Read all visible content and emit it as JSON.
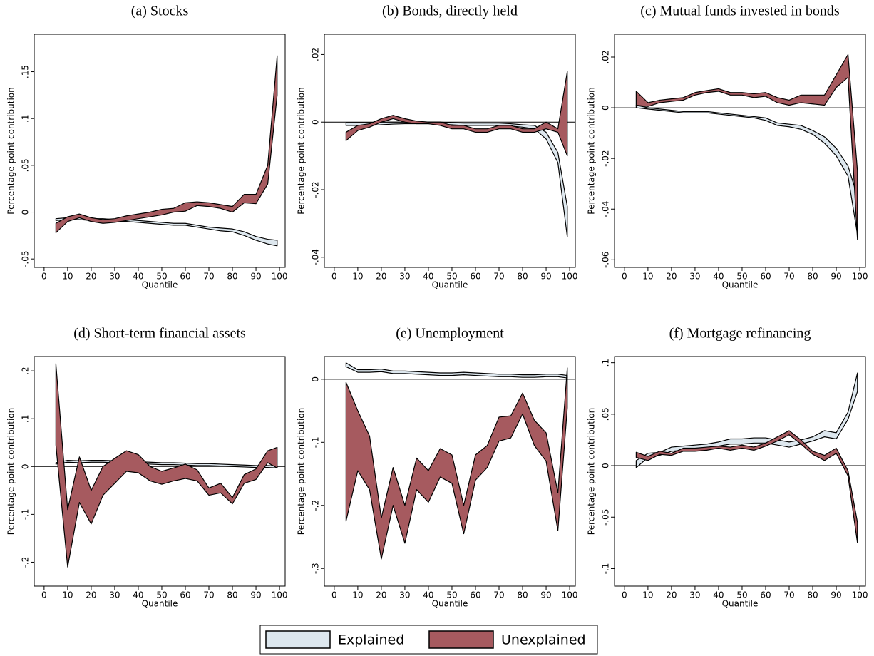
{
  "chart_data": [
    {
      "type": "band",
      "title": "(a) Stocks",
      "xlabel": "Quantile",
      "ylabel": "Percentage point contribution",
      "x": [
        5,
        10,
        15,
        20,
        25,
        30,
        35,
        40,
        45,
        50,
        55,
        60,
        65,
        70,
        75,
        80,
        85,
        90,
        95,
        99
      ],
      "xlim": [
        -4.2,
        102.4
      ],
      "xticks": [
        0,
        10,
        20,
        30,
        40,
        50,
        60,
        70,
        80,
        90,
        100
      ],
      "ylim": [
        -0.059,
        0.19
      ],
      "yticks": [
        {
          "value": -0.05,
          "label": "-.05"
        },
        0,
        {
          "value": 0.05,
          "label": ".05"
        },
        {
          "value": 0.1,
          "label": ".1"
        },
        {
          "value": 0.15,
          "label": ".15"
        }
      ],
      "zero_line": true,
      "series": [
        {
          "name": "Explained",
          "color": "#dde7ee",
          "low": [
            -0.009,
            -0.008,
            -0.008,
            -0.009,
            -0.009,
            -0.01,
            -0.01,
            -0.011,
            -0.012,
            -0.013,
            -0.014,
            -0.014,
            -0.016,
            -0.018,
            -0.02,
            -0.021,
            -0.025,
            -0.03,
            -0.034,
            -0.036
          ],
          "high": [
            -0.007,
            -0.006,
            -0.006,
            -0.007,
            -0.007,
            -0.008,
            -0.008,
            -0.009,
            -0.01,
            -0.011,
            -0.012,
            -0.012,
            -0.014,
            -0.016,
            -0.017,
            -0.018,
            -0.021,
            -0.026,
            -0.029,
            -0.03
          ]
        },
        {
          "name": "Unexplained",
          "color": "#a65a5f",
          "low": [
            -0.022,
            -0.01,
            -0.006,
            -0.01,
            -0.012,
            -0.011,
            -0.009,
            -0.007,
            -0.005,
            -0.003,
            0.0,
            0.001,
            0.007,
            0.006,
            0.004,
            0.0,
            0.01,
            0.009,
            0.03,
            0.125
          ],
          "high": [
            -0.012,
            -0.005,
            -0.002,
            -0.006,
            -0.008,
            -0.007,
            -0.004,
            -0.002,
            0.0,
            0.003,
            0.004,
            0.01,
            0.011,
            0.01,
            0.008,
            0.006,
            0.019,
            0.019,
            0.05,
            0.167
          ]
        }
      ]
    },
    {
      "type": "band",
      "title": "(b) Bonds, directly held",
      "xlabel": "Quantile",
      "ylabel": "Percentage point contribution",
      "x": [
        5,
        10,
        15,
        20,
        25,
        30,
        35,
        40,
        45,
        50,
        55,
        60,
        65,
        70,
        75,
        80,
        85,
        90,
        95,
        99
      ],
      "xlim": [
        -4.2,
        102.4
      ],
      "xticks": [
        0,
        10,
        20,
        30,
        40,
        50,
        60,
        70,
        80,
        90,
        100
      ],
      "ylim": [
        -0.043,
        0.026
      ],
      "yticks": [
        {
          "value": -0.04,
          "label": "-.04"
        },
        {
          "value": -0.02,
          "label": "-.02"
        },
        0,
        {
          "value": 0.02,
          "label": ".02"
        }
      ],
      "zero_line": true,
      "series": [
        {
          "color": "#dde7ee",
          "low": [
            -0.001,
            -0.001,
            -0.001,
            -0.0008,
            -0.0006,
            -0.0005,
            -0.0005,
            -0.0005,
            -0.0006,
            -0.0008,
            -0.001,
            -0.001,
            -0.001,
            -0.001,
            -0.0012,
            -0.0015,
            -0.002,
            -0.005,
            -0.012,
            -0.034
          ],
          "high": [
            -0.0002,
            -0.0002,
            -0.0002,
            0,
            0,
            0,
            0,
            0,
            0,
            -0.0002,
            -0.0003,
            -0.0003,
            -0.0003,
            -0.0003,
            -0.0005,
            -0.0008,
            -0.001,
            -0.003,
            -0.009,
            -0.025
          ]
        },
        {
          "color": "#a65a5f",
          "low": [
            -0.0055,
            -0.0025,
            -0.0015,
            0,
            0.001,
            0,
            -0.0005,
            -0.0005,
            -0.001,
            -0.002,
            -0.002,
            -0.003,
            -0.003,
            -0.002,
            -0.002,
            -0.003,
            -0.003,
            -0.002,
            -0.003,
            -0.01
          ],
          "high": [
            -0.003,
            -0.001,
            -0.0005,
            0.001,
            0.002,
            0.001,
            0.0003,
            0,
            0,
            -0.001,
            -0.001,
            -0.002,
            -0.002,
            -0.001,
            -0.001,
            -0.002,
            -0.002,
            0,
            -0.002,
            0.015
          ]
        }
      ]
    },
    {
      "type": "band",
      "title": "(c) Mutual funds invested in bonds",
      "xlabel": "Quantile",
      "ylabel": "Percentage point contribution",
      "x": [
        5,
        10,
        15,
        20,
        25,
        30,
        35,
        40,
        45,
        50,
        55,
        60,
        65,
        70,
        75,
        80,
        85,
        90,
        95,
        99
      ],
      "xlim": [
        -4.2,
        102.4
      ],
      "xticks": [
        0,
        10,
        20,
        30,
        40,
        50,
        60,
        70,
        80,
        90,
        100
      ],
      "ylim": [
        -0.063,
        0.029
      ],
      "yticks": [
        {
          "value": -0.06,
          "label": "-.06"
        },
        {
          "value": -0.04,
          "label": "-.04"
        },
        {
          "value": -0.02,
          "label": "-.02"
        },
        0,
        {
          "value": 0.02,
          "label": ".02"
        }
      ],
      "zero_line": true,
      "series": [
        {
          "color": "#dde7ee",
          "low": [
            0,
            -0.0005,
            -0.001,
            -0.0015,
            -0.002,
            -0.002,
            -0.002,
            -0.0025,
            -0.003,
            -0.0035,
            -0.004,
            -0.005,
            -0.007,
            -0.0075,
            -0.0085,
            -0.0105,
            -0.014,
            -0.019,
            -0.027,
            -0.05
          ],
          "high": [
            0.001,
            0,
            -0.0005,
            -0.001,
            -0.0015,
            -0.0015,
            -0.0015,
            -0.002,
            -0.0025,
            -0.003,
            -0.0035,
            -0.004,
            -0.006,
            -0.0065,
            -0.007,
            -0.009,
            -0.0115,
            -0.016,
            -0.023,
            -0.035
          ]
        },
        {
          "color": "#a65a5f",
          "low": [
            0.001,
            0.0005,
            0.002,
            0.0025,
            0.003,
            0.005,
            0.006,
            0.0065,
            0.005,
            0.005,
            0.004,
            0.0045,
            0.002,
            0.001,
            0.002,
            0.0015,
            0.001,
            0.008,
            0.012,
            -0.052
          ],
          "high": [
            0.0065,
            0.002,
            0.003,
            0.0035,
            0.004,
            0.006,
            0.0068,
            0.0075,
            0.006,
            0.006,
            0.0055,
            0.006,
            0.004,
            0.003,
            0.005,
            0.005,
            0.005,
            0.013,
            0.021,
            -0.025
          ]
        }
      ]
    },
    {
      "type": "band",
      "title": "(d) Short-term financial assets",
      "xlabel": "Quantile",
      "ylabel": "Percentage point contribution",
      "x": [
        5,
        10,
        15,
        20,
        25,
        30,
        35,
        40,
        45,
        50,
        55,
        60,
        65,
        70,
        75,
        80,
        85,
        90,
        95,
        99
      ],
      "xlim": [
        -4.2,
        102.4
      ],
      "xticks": [
        0,
        10,
        20,
        30,
        40,
        50,
        60,
        70,
        80,
        90,
        100
      ],
      "ylim": [
        -0.25,
        0.23
      ],
      "yticks": [
        {
          "value": -0.2,
          "label": "-.2"
        },
        {
          "value": -0.1,
          "label": "-.1"
        },
        0,
        {
          "value": 0.1,
          "label": ".1"
        },
        {
          "value": 0.2,
          "label": ".2"
        }
      ],
      "zero_line": true,
      "series": [
        {
          "color": "#dde7ee",
          "low": [
            0.005,
            0.009,
            0.008,
            0.009,
            0.009,
            0.008,
            0.007,
            0.006,
            0.005,
            0.004,
            0.004,
            0.003,
            0.002,
            0.002,
            0.001,
            0,
            -0.001,
            -0.002,
            -0.002,
            -0.003
          ],
          "high": [
            0.008,
            0.013,
            0.012,
            0.013,
            0.013,
            0.012,
            0.011,
            0.01,
            0.009,
            0.008,
            0.008,
            0.007,
            0.006,
            0.006,
            0.005,
            0.004,
            0.003,
            0.002,
            0.002,
            0.001
          ]
        },
        {
          "color": "#a65a5f",
          "low": [
            0.045,
            -0.21,
            -0.075,
            -0.12,
            -0.06,
            -0.035,
            -0.01,
            -0.013,
            -0.03,
            -0.037,
            -0.03,
            -0.025,
            -0.03,
            -0.06,
            -0.055,
            -0.078,
            -0.035,
            -0.027,
            0.008,
            -0.003
          ],
          "high": [
            0.215,
            -0.09,
            0.02,
            -0.05,
            0,
            0.017,
            0.033,
            0.025,
            0,
            -0.01,
            -0.003,
            0.005,
            -0.007,
            -0.045,
            -0.035,
            -0.065,
            -0.017,
            -0.005,
            0.033,
            0.04
          ]
        }
      ]
    },
    {
      "type": "band",
      "title": "(e) Unemployment",
      "xlabel": "Quantile",
      "ylabel": "Percentage point contribution",
      "x": [
        5,
        10,
        15,
        20,
        25,
        30,
        35,
        40,
        45,
        50,
        55,
        60,
        65,
        70,
        75,
        80,
        85,
        90,
        95,
        99
      ],
      "xlim": [
        -4.2,
        102.4
      ],
      "xticks": [
        0,
        10,
        20,
        30,
        40,
        50,
        60,
        70,
        80,
        90,
        100
      ],
      "ylim": [
        -0.328,
        0.036
      ],
      "yticks": [
        {
          "value": -0.3,
          "label": "-.3"
        },
        {
          "value": -0.2,
          "label": "-.2"
        },
        {
          "value": -0.1,
          "label": "-.1"
        },
        0
      ],
      "zero_line": true,
      "series": [
        {
          "color": "#dde7ee",
          "low": [
            0.02,
            0.011,
            0.011,
            0.012,
            0.009,
            0.009,
            0.008,
            0.007,
            0.006,
            0.006,
            0.007,
            0.006,
            0.005,
            0.004,
            0.004,
            0.003,
            0.003,
            0.004,
            0.004,
            0.002
          ],
          "high": [
            0.026,
            0.015,
            0.015,
            0.016,
            0.013,
            0.013,
            0.012,
            0.011,
            0.01,
            0.01,
            0.011,
            0.01,
            0.009,
            0.008,
            0.008,
            0.007,
            0.007,
            0.008,
            0.008,
            0.006
          ]
        },
        {
          "color": "#a65a5f",
          "low": [
            -0.225,
            -0.145,
            -0.175,
            -0.285,
            -0.2,
            -0.26,
            -0.175,
            -0.195,
            -0.155,
            -0.165,
            -0.245,
            -0.16,
            -0.14,
            -0.098,
            -0.093,
            -0.055,
            -0.105,
            -0.13,
            -0.24,
            -0.045
          ],
          "high": [
            -0.005,
            -0.05,
            -0.09,
            -0.22,
            -0.14,
            -0.2,
            -0.125,
            -0.145,
            -0.11,
            -0.12,
            -0.2,
            -0.12,
            -0.105,
            -0.06,
            -0.058,
            -0.022,
            -0.065,
            -0.085,
            -0.18,
            0.018
          ]
        }
      ]
    },
    {
      "type": "band",
      "title": "(f) Mortgage refinancing",
      "xlabel": "Quantile",
      "ylabel": "Percentage point contribution",
      "x": [
        5,
        10,
        15,
        20,
        25,
        30,
        35,
        40,
        45,
        50,
        55,
        60,
        65,
        70,
        75,
        80,
        85,
        90,
        95,
        99
      ],
      "xlim": [
        -4.2,
        102.4
      ],
      "xticks": [
        0,
        10,
        20,
        30,
        40,
        50,
        60,
        70,
        80,
        90,
        100
      ],
      "ylim": [
        -0.117,
        0.106
      ],
      "yticks": [
        {
          "value": -0.1,
          "label": "-.1"
        },
        {
          "value": -0.05,
          "label": "-.05"
        },
        0,
        {
          "value": 0.05,
          "label": ".05"
        },
        {
          "value": 0.1,
          "label": ".1"
        }
      ],
      "zero_line": true,
      "series": [
        {
          "color": "#dde7ee",
          "low": [
            -0.002,
            0.008,
            0.01,
            0.014,
            0.015,
            0.016,
            0.017,
            0.019,
            0.021,
            0.021,
            0.022,
            0.022,
            0.02,
            0.018,
            0.021,
            0.024,
            0.028,
            0.026,
            0.045,
            0.072
          ],
          "high": [
            0.005,
            0.012,
            0.013,
            0.018,
            0.019,
            0.02,
            0.021,
            0.023,
            0.026,
            0.026,
            0.027,
            0.027,
            0.025,
            0.023,
            0.025,
            0.028,
            0.034,
            0.032,
            0.052,
            0.09
          ]
        },
        {
          "color": "#a65a5f",
          "low": [
            0.008,
            0.005,
            0.011,
            0.01,
            0.014,
            0.014,
            0.015,
            0.017,
            0.015,
            0.017,
            0.015,
            0.019,
            0.024,
            0.03,
            0.021,
            0.011,
            0.005,
            0.012,
            -0.01,
            -0.075
          ],
          "high": [
            0.013,
            0.009,
            0.014,
            0.012,
            0.017,
            0.017,
            0.018,
            0.019,
            0.018,
            0.02,
            0.018,
            0.022,
            0.028,
            0.034,
            0.025,
            0.014,
            0.01,
            0.017,
            -0.005,
            -0.055
          ]
        }
      ]
    }
  ]
}
